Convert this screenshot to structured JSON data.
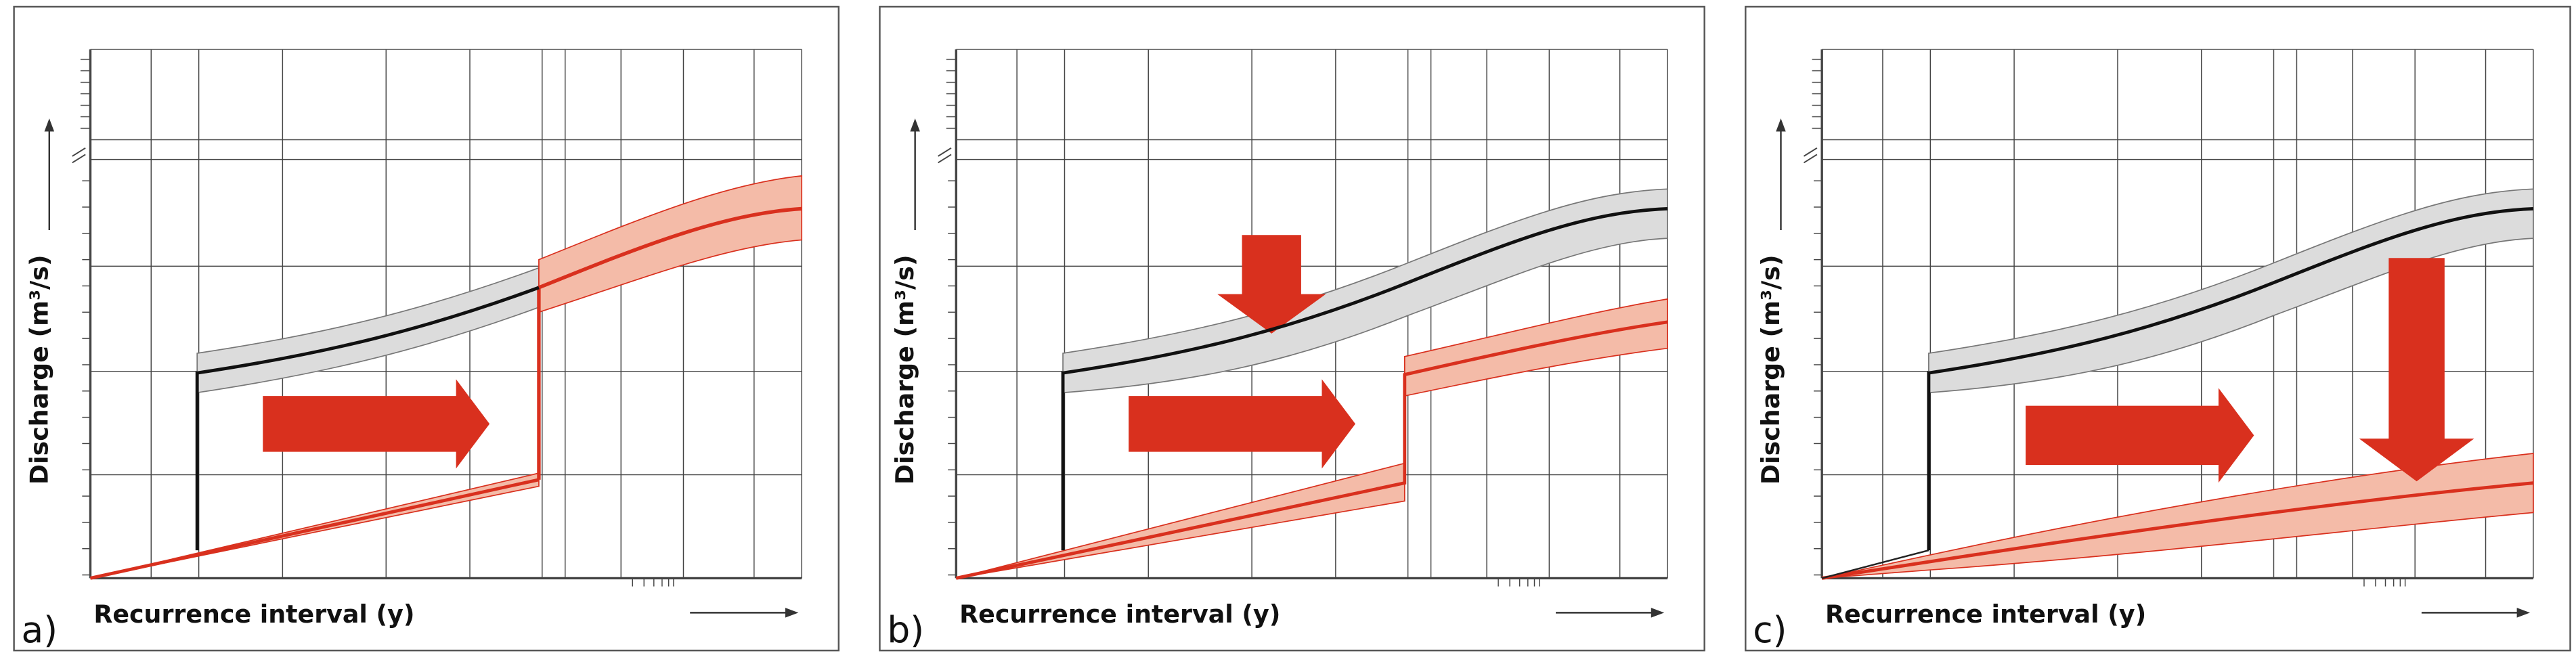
{
  "panels": [
    {
      "label": "a)",
      "y_axis_label": "Discharge (m³/s)",
      "x_axis_label": "Recurrence interval (y)"
    },
    {
      "label": "b)",
      "y_axis_label": "Discharge (m³/s)",
      "x_axis_label": "Recurrence interval (y)"
    },
    {
      "label": "c)",
      "y_axis_label": "Discharge (m³/s)",
      "x_axis_label": "Recurrence interval (y)"
    }
  ]
}
